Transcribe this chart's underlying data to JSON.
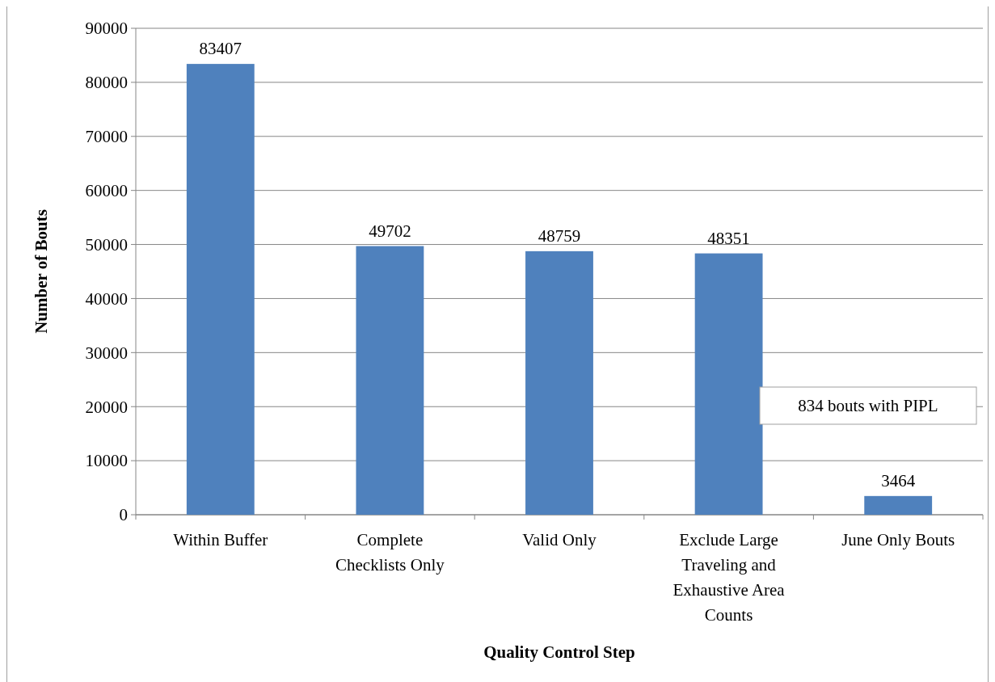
{
  "chart_data": {
    "type": "bar",
    "xlabel": "Quality Control Step",
    "ylabel": "Number of Bouts",
    "categories": [
      "Within Buffer",
      "Complete Checklists Only",
      "Valid Only",
      "Exclude Large Traveling and Exhaustive Area Counts",
      "June Only Bouts"
    ],
    "values": [
      83407,
      49702,
      48759,
      48351,
      3464
    ],
    "color": "#4f81bd",
    "ylim": [
      0,
      90000
    ],
    "yticks": [
      0,
      10000,
      20000,
      30000,
      40000,
      50000,
      60000,
      70000,
      80000,
      90000
    ],
    "grid": "y",
    "data_labels": true,
    "annotations": [
      "834 bouts with PIPL"
    ]
  }
}
